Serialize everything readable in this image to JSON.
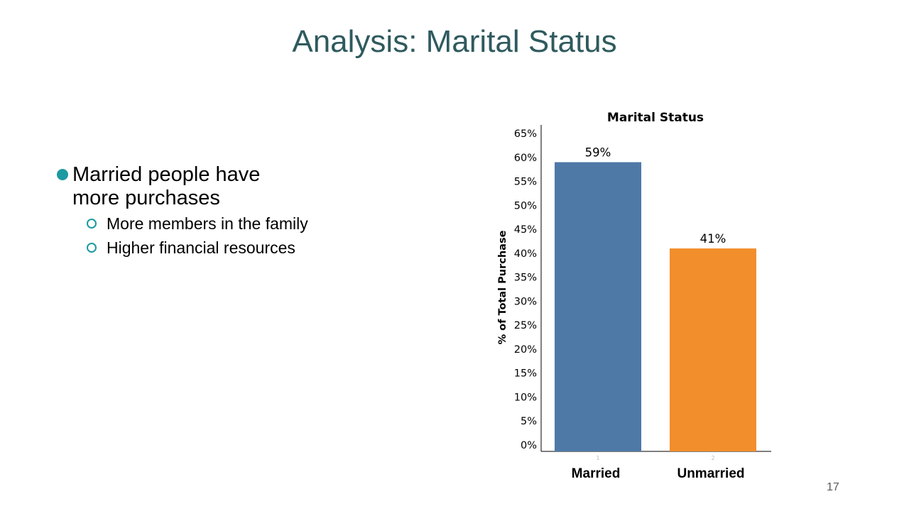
{
  "slide": {
    "title": "Analysis: Marital Status",
    "page_number": "17"
  },
  "bullets": {
    "main": "Married people have more purchases",
    "subs": [
      "More members in the family",
      "Higher financial resources"
    ]
  },
  "colors": {
    "title": "#2f5a5e",
    "bullet_accent": "#1b9aa1",
    "married_bar": "#4e79a7",
    "unmarried_bar": "#f28e2b"
  },
  "chart_data": {
    "type": "bar",
    "title": "Marital Status",
    "ylabel": "% of Total Purchase",
    "xlabel": "",
    "categories": [
      "Married",
      "Unmarried"
    ],
    "category_ticks": [
      "1",
      "2"
    ],
    "values": [
      59,
      41
    ],
    "data_labels": [
      "59%",
      "41%"
    ],
    "ylim": [
      0,
      65
    ],
    "yticks": [
      0,
      5,
      10,
      15,
      20,
      25,
      30,
      35,
      40,
      45,
      50,
      55,
      60,
      65
    ],
    "ytick_labels": [
      "0%",
      "5%",
      "10%",
      "15%",
      "20%",
      "25%",
      "30%",
      "35%",
      "40%",
      "45%",
      "50%",
      "55%",
      "60%",
      "65%"
    ],
    "grid": false,
    "legend": "none"
  }
}
